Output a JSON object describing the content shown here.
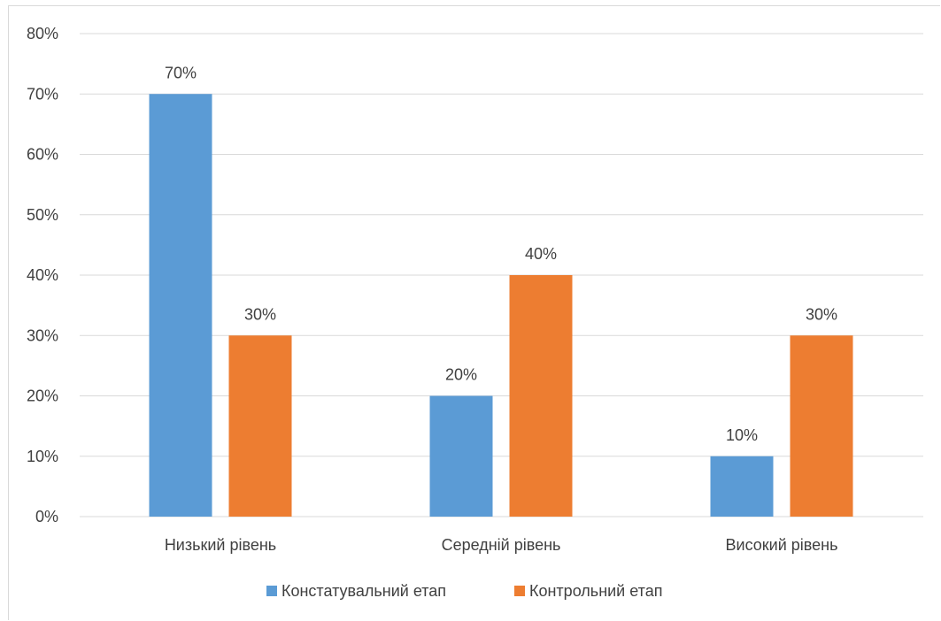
{
  "chart_data": {
    "type": "bar",
    "categories": [
      "Низький рівень",
      "Середній рівень",
      "Високий рівень"
    ],
    "series": [
      {
        "name": "Констатувальний етап",
        "values": [
          70,
          20,
          10
        ],
        "labels": [
          "70%",
          "20%",
          "10%"
        ],
        "color": "#5b9bd5"
      },
      {
        "name": "Контрольний етап",
        "values": [
          30,
          40,
          30
        ],
        "labels": [
          "30%",
          "40%",
          "30%"
        ],
        "color": "#ed7d31"
      }
    ],
    "y_tick_labels": [
      "0%",
      "10%",
      "20%",
      "30%",
      "40%",
      "50%",
      "60%",
      "70%",
      "80%"
    ],
    "ylim": [
      0,
      80
    ],
    "grid": true,
    "legend_position": "bottom",
    "gridline_color": "#d9d9d9",
    "text_color": "#404040"
  }
}
